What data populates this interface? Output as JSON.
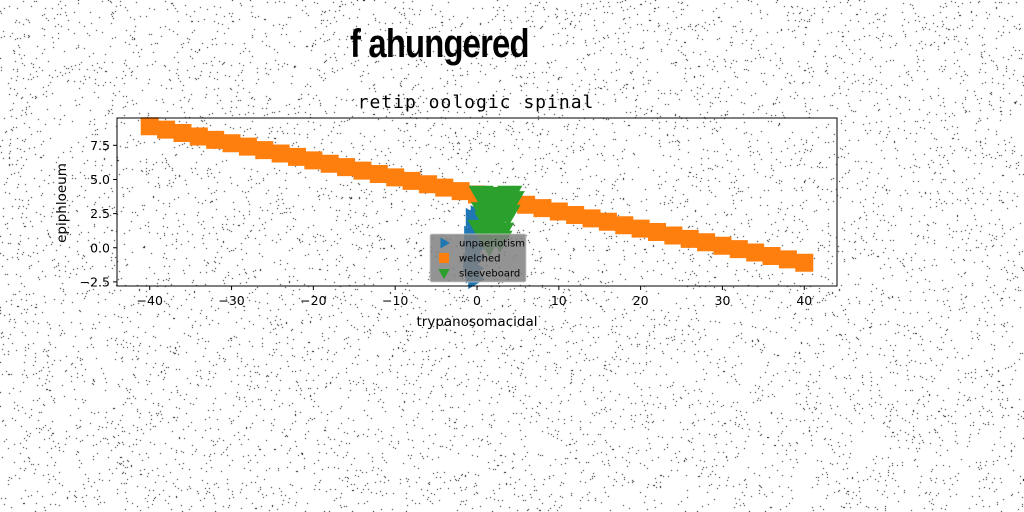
{
  "figure": {
    "suptitle": "f ahungered"
  },
  "chart_data": {
    "type": "scatter",
    "title": "retip oologic spinal",
    "xlabel": "trypanosomacidal",
    "ylabel": "epiphloeum",
    "xlim": [
      -44,
      44
    ],
    "ylim": [
      -2.8,
      9.5
    ],
    "xticks": [
      -40,
      -30,
      -20,
      -10,
      0,
      10,
      20,
      30,
      40
    ],
    "yticks": [
      -2.5,
      0.0,
      2.5,
      5.0,
      7.5
    ],
    "xtick_labels": [
      "−40",
      "−30",
      "−20",
      "−10",
      "0",
      "10",
      "20",
      "30",
      "40"
    ],
    "ytick_labels": [
      "−2.5",
      "0.0",
      "2.5",
      "5.0",
      "7.5"
    ],
    "grid": false,
    "legend_position": "lower-center",
    "series": [
      {
        "name": "unpaeriotism",
        "marker": "triangle-right",
        "color": "#1f77b4",
        "x": [
          -0.3,
          -0.6,
          -0.4,
          -0.9,
          -0.2,
          -0.7,
          0.1,
          -0.5,
          -0.8,
          -0.1,
          0.3,
          -0.4,
          -0.6,
          0.0,
          -0.3
        ],
        "y": [
          -2.3,
          -1.9,
          -1.5,
          -1.1,
          -0.7,
          -0.3,
          0.1,
          0.5,
          0.9,
          1.3,
          1.6,
          1.9,
          2.2,
          2.4,
          2.0
        ]
      },
      {
        "name": "welched",
        "marker": "square",
        "color": "#ff7f0e",
        "x": [
          -40.0,
          -38.0,
          -36.0,
          -34.0,
          -32.0,
          -30.0,
          -28.0,
          -26.0,
          -24.0,
          -22.0,
          -20.0,
          -18.0,
          -16.0,
          -14.0,
          -12.0,
          -10.0,
          -8.0,
          -6.0,
          -4.0,
          -2.0,
          0.0,
          2.0,
          4.0,
          6.0,
          8.0,
          10.0,
          12.0,
          14.0,
          16.0,
          18.0,
          20.0,
          22.0,
          24.0,
          26.0,
          28.0,
          30.0,
          32.0,
          34.0,
          36.0,
          38.0,
          40.0
        ],
        "y": [
          8.9,
          8.65,
          8.4,
          8.15,
          7.9,
          7.65,
          7.4,
          7.15,
          6.9,
          6.65,
          6.4,
          6.15,
          5.9,
          5.65,
          5.4,
          5.15,
          4.9,
          4.65,
          4.4,
          4.15,
          3.9,
          3.65,
          3.4,
          3.15,
          2.9,
          2.65,
          2.4,
          2.15,
          1.9,
          1.65,
          1.4,
          1.15,
          0.9,
          0.65,
          0.4,
          0.15,
          -0.1,
          -0.35,
          -0.6,
          -0.85,
          -1.1
        ]
      },
      {
        "name": "sleeveboard",
        "marker": "triangle-down",
        "color": "#2ca02c",
        "x": [
          0.5,
          1.0,
          1.5,
          2.0,
          2.5,
          3.0,
          3.5,
          4.0,
          1.2,
          2.2,
          3.2,
          0.8,
          1.8,
          2.8,
          1.5,
          2.5,
          3.5,
          4.3,
          0.4,
          2.0,
          3.0,
          1.0,
          2.6,
          3.8
        ],
        "y": [
          3.9,
          3.4,
          3.8,
          2.9,
          3.6,
          2.4,
          3.2,
          3.9,
          2.0,
          1.6,
          2.8,
          2.7,
          1.1,
          0.6,
          0.3,
          1.9,
          3.6,
          3.5,
          1.4,
          2.3,
          1.2,
          0.9,
          3.0,
          2.5
        ]
      }
    ]
  }
}
